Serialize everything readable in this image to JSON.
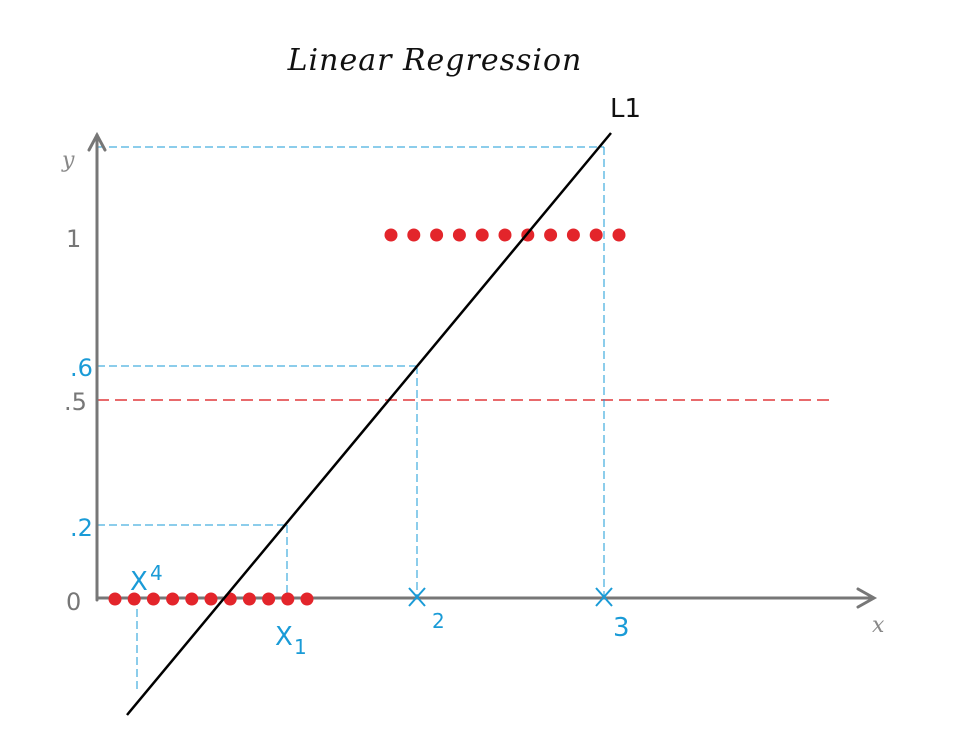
{
  "title": "Linear Regression",
  "axes": {
    "x_label": "x",
    "y_label": "y",
    "y_ticks": [
      {
        "text": "0",
        "value": 0
      },
      {
        "text": "1",
        "value": 1
      }
    ],
    "threshold": {
      "text": ".5",
      "value": 0.5,
      "color": "#e0383b"
    }
  },
  "regression_line": {
    "label": "L1",
    "color": "#000000"
  },
  "class_0_points": {
    "count": 11,
    "color": "#e3252b"
  },
  "class_1_points": {
    "count": 11,
    "color": "#e3252b"
  },
  "projections": [
    {
      "name": "x1",
      "symbol": "X",
      "subscript": "1",
      "y_text": ".2",
      "y_value": 0.2
    },
    {
      "name": "x2",
      "symbol": "X",
      "subscript": "2",
      "y_text": ".6",
      "y_value": 0.6
    },
    {
      "name": "x3",
      "symbol": "X",
      "subscript": "3",
      "y_text": "",
      "y_value": null
    },
    {
      "name": "x4",
      "symbol": "X",
      "subscript": "4",
      "y_text": "",
      "y_value": null
    }
  ],
  "colors": {
    "projection": "#1a9bd7",
    "axes": "#777777"
  }
}
